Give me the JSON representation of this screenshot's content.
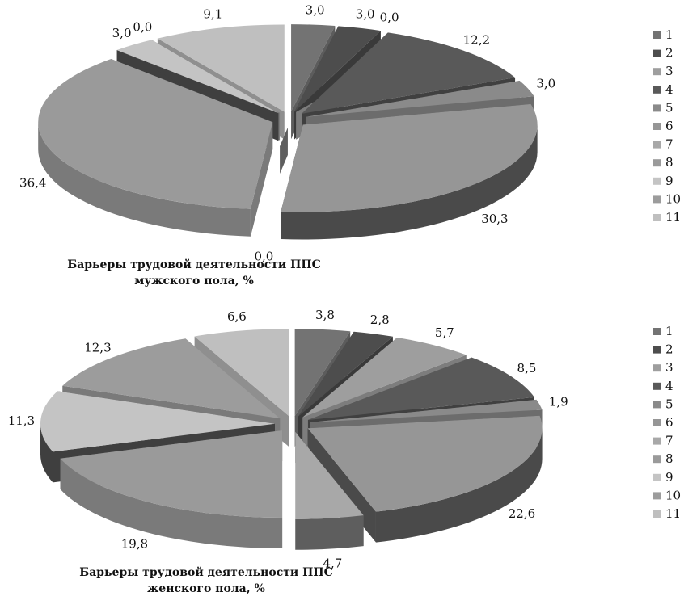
{
  "chart_data": [
    {
      "type": "pie",
      "title_line1": "Барьеры трудовой деятельности ППС",
      "title_line2": "мужского пола, %",
      "categories": [
        "1",
        "2",
        "3",
        "4",
        "5",
        "6",
        "7",
        "8",
        "9",
        "10",
        "11"
      ],
      "values": [
        3.0,
        3.0,
        0.0,
        12.2,
        3.0,
        30.3,
        0.0,
        36.4,
        3.0,
        0.0,
        9.1
      ],
      "data_labels": [
        "3,0",
        "3,0",
        "0,0",
        "12,2",
        "3,0",
        "30,3",
        "0,0",
        "36,4",
        "3,0",
        "0,0",
        "9,1"
      ],
      "legend_position": "right",
      "style": "3d-exploded"
    },
    {
      "type": "pie",
      "title_line1": "Барьеры трудовой деятельности ППС",
      "title_line2": "женского пола, %",
      "categories": [
        "1",
        "2",
        "3",
        "4",
        "5",
        "6",
        "7",
        "8",
        "9",
        "10",
        "11"
      ],
      "values": [
        3.8,
        2.8,
        5.7,
        8.5,
        1.9,
        22.6,
        4.7,
        19.8,
        11.3,
        12.3,
        6.6
      ],
      "data_labels": [
        "3,8",
        "2,8",
        "5,7",
        "8,5",
        "1,9",
        "22,6",
        "4,7",
        "19,8",
        "11,3",
        "12,3",
        "6,6"
      ],
      "legend_position": "right",
      "style": "3d-exploded"
    }
  ],
  "colors": {
    "top": [
      "#737373",
      "#4d4d4d",
      "#9e9e9e",
      "#595959",
      "#8a8a8a",
      "#969696",
      "#a8a8a8",
      "#9a9a9a",
      "#c4c4c4",
      "#9c9c9c",
      "#bfbfbf"
    ],
    "side": [
      "#5c5c5c",
      "#3a3a3a",
      "#7d7d7d",
      "#404040",
      "#6c6c6c",
      "#4a4a4a",
      "#5e5e5e",
      "#7a7a7a",
      "#3f3f3f",
      "#7a7a7a",
      "#8f8f8f"
    ]
  }
}
